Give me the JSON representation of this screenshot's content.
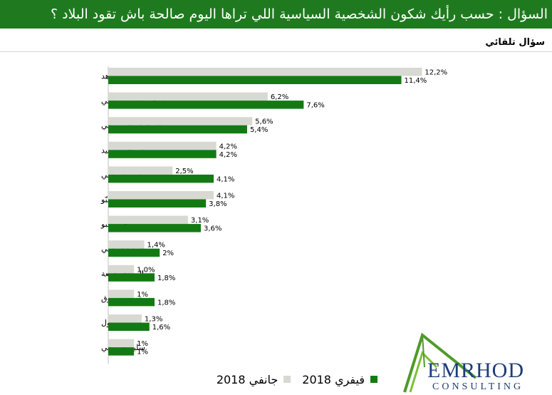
{
  "header": {
    "title": "السؤال :  حسب رأيك شكون الشخصية  السياسية اللي تراها اليوم صالحة باش تقود البلاد ؟"
  },
  "subtitle": "سؤال تلقائي",
  "chart_data": {
    "type": "bar",
    "orientation": "horizontal",
    "categories": [
      "يوسف الشاهد",
      "الباجي قايد السبسي",
      "المنصف المرزوقي",
      "الصافي سعيد",
      "حمة الهمامي",
      "سامية عبّو",
      "محمد عبو",
      "راشد الغنوشي",
      "المهدي جمعة",
      "محسن مرزوق",
      "ناجي جلول",
      "سليم الرياحي"
    ],
    "series": [
      {
        "name": "جانفي 2018",
        "color": "#d9d9d3",
        "values": [
          12.2,
          6.2,
          5.6,
          4.2,
          2.5,
          4.1,
          3.1,
          1.4,
          1.0,
          1,
          1.3,
          1
        ],
        "labels": [
          "12,2%",
          "6,2%",
          "5,6%",
          "4,2%",
          "2,5%",
          "4,1%",
          "3,1%",
          "1,4%",
          "1,0%",
          "1%",
          "1,3%",
          "1%"
        ]
      },
      {
        "name": "فيفري 2018",
        "color": "#137a13",
        "values": [
          11.4,
          7.6,
          5.4,
          4.2,
          4.1,
          3.8,
          3.6,
          2,
          1.8,
          1.8,
          1.6,
          1
        ],
        "labels": [
          "11,4%",
          "7,6%",
          "5,4%",
          "4,2%",
          "4,1%",
          "3,8%",
          "3,6%",
          "2%",
          "1,8%",
          "1,8%",
          "1,6%",
          "1%"
        ]
      }
    ],
    "legend_position": "bottom",
    "grid": false
  },
  "legend": {
    "jan": "جانفي 2018",
    "feb": "فيفري 2018"
  },
  "logo": {
    "name": "EMRHOD",
    "sub": "CONSULTING"
  }
}
